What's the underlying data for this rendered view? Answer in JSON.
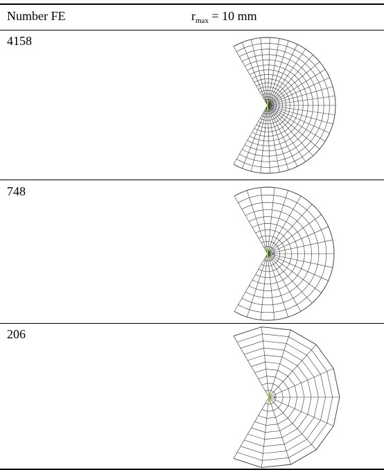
{
  "table": {
    "header": {
      "col1": "Number FE",
      "col2_symbol": "r",
      "col2_subscript": "max",
      "col2_rest": " = 10 mm"
    },
    "rows": [
      {
        "count": "4158",
        "radial_divisions": 30,
        "rings": 18
      },
      {
        "count": "748",
        "radial_divisions": 20,
        "rings": 11
      },
      {
        "count": "206",
        "radial_divisions": 10,
        "rings": 10
      }
    ]
  },
  "colors": {
    "rule": "#000000",
    "mesh_line": "#333333",
    "crack_tip_green": "#9acd32",
    "crack_tip_blue": "#4a6fa5"
  }
}
